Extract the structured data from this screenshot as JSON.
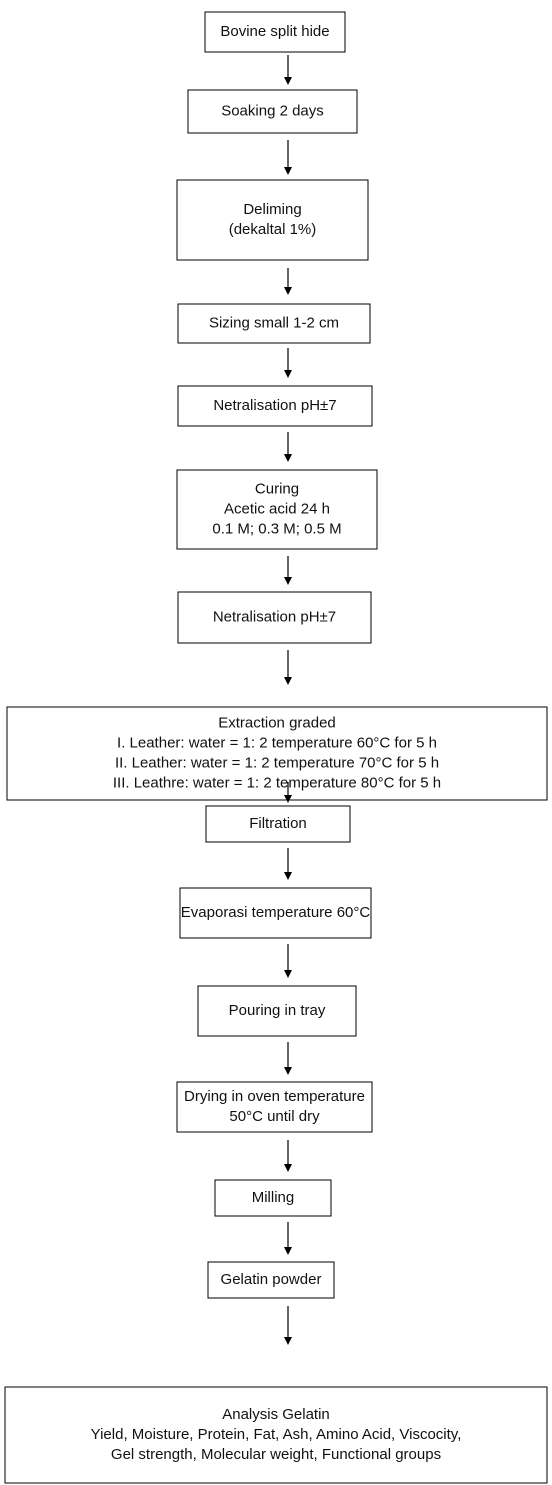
{
  "nodes": [
    {
      "lines": [
        "Bovine split hide"
      ]
    },
    {
      "lines": [
        "Soaking 2 days"
      ]
    },
    {
      "lines": [
        "Deliming",
        "(dekaltal 1%)"
      ]
    },
    {
      "lines": [
        "Sizing small 1-2 cm"
      ]
    },
    {
      "lines": [
        "Netralisation pH±7"
      ]
    },
    {
      "lines": [
        "Curing",
        "Acetic acid 24 h",
        "0.1 M; 0.3 M; 0.5 M"
      ]
    },
    {
      "lines": [
        "Netralisation pH±7"
      ]
    },
    {
      "lines": [
        "Extraction graded",
        "I. Leather: water = 1: 2 temperature 60°C for 5 h",
        "II. Leather: water = 1: 2 temperature 70°C for 5 h",
        "III. Leathre: water = 1: 2 temperature 80°C for 5 h"
      ]
    },
    {
      "lines": [
        "Filtration"
      ]
    },
    {
      "lines": [
        "Evaporasi temperature 60°C"
      ]
    },
    {
      "lines": [
        "Pouring in tray"
      ]
    },
    {
      "lines": [
        "Drying in oven temperature",
        "50°C until dry"
      ]
    },
    {
      "lines": [
        "Milling"
      ]
    },
    {
      "lines": [
        "Gelatin powder"
      ]
    },
    {
      "lines": [
        "Analysis Gelatin",
        "Yield, Moisture, Protein, Fat, Ash, Amino Acid, Viscocity,",
        "Gel strength, Molecular weight, Functional groups"
      ]
    }
  ]
}
